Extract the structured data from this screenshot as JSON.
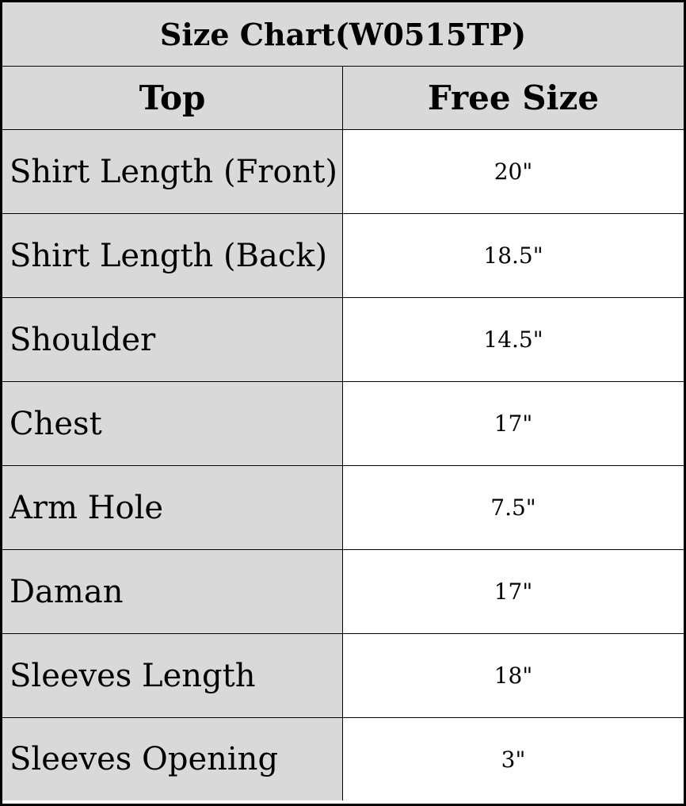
{
  "title": "Size Chart(W0515TP)",
  "header": {
    "col1": "Top",
    "col2": "Free Size"
  },
  "rows": [
    {
      "label": "Shirt Length (Front)",
      "value": "20\""
    },
    {
      "label": "Shirt Length (Back)",
      "value": "18.5\""
    },
    {
      "label": "Shoulder",
      "value": "14.5\""
    },
    {
      "label": "Chest",
      "value": "17\""
    },
    {
      "label": "Arm Hole",
      "value": "7.5\""
    },
    {
      "label": "Daman",
      "value": "17\""
    },
    {
      "label": "Sleeves Length",
      "value": "18\""
    },
    {
      "label": "Sleeves Opening",
      "value": "3\""
    }
  ],
  "colors": {
    "label_bg": "#d9d9d9",
    "value_bg": "#ffffff",
    "border": "#000000"
  }
}
